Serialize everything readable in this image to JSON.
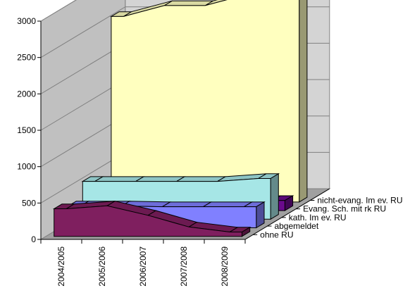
{
  "chart_data": {
    "type": "area",
    "categories": [
      "2004/2005",
      "2005/2006",
      "2006/2007",
      "2007/2008",
      "2008/2009"
    ],
    "ylim": [
      0,
      3000
    ],
    "yticks": [
      "0",
      "500",
      "1000",
      "1500",
      "2000",
      "2500",
      "3000"
    ],
    "grid": true,
    "series": [
      {
        "name": "ohne RU",
        "values": [
          380,
          420,
          290,
          130,
          60
        ],
        "color": "#7f1f5f"
      },
      {
        "name": "abgemeldet",
        "values": [
          300,
          300,
          290,
          290,
          290
        ],
        "color": "#8080ff"
      },
      {
        "name": "kath. Im ev. RU",
        "values": [
          520,
          520,
          520,
          520,
          560
        ],
        "color": "#a6e6e6"
      },
      {
        "name": "Evang. Sch. mit rk RU",
        "values": [
          80,
          80,
          90,
          110,
          140
        ],
        "color": "#6a0a8c"
      },
      {
        "name": "nicht-evang. Im ev. RU",
        "values": [
          2550,
          2700,
          2700,
          2850,
          2900
        ],
        "color": "#ffffbf"
      }
    ]
  }
}
